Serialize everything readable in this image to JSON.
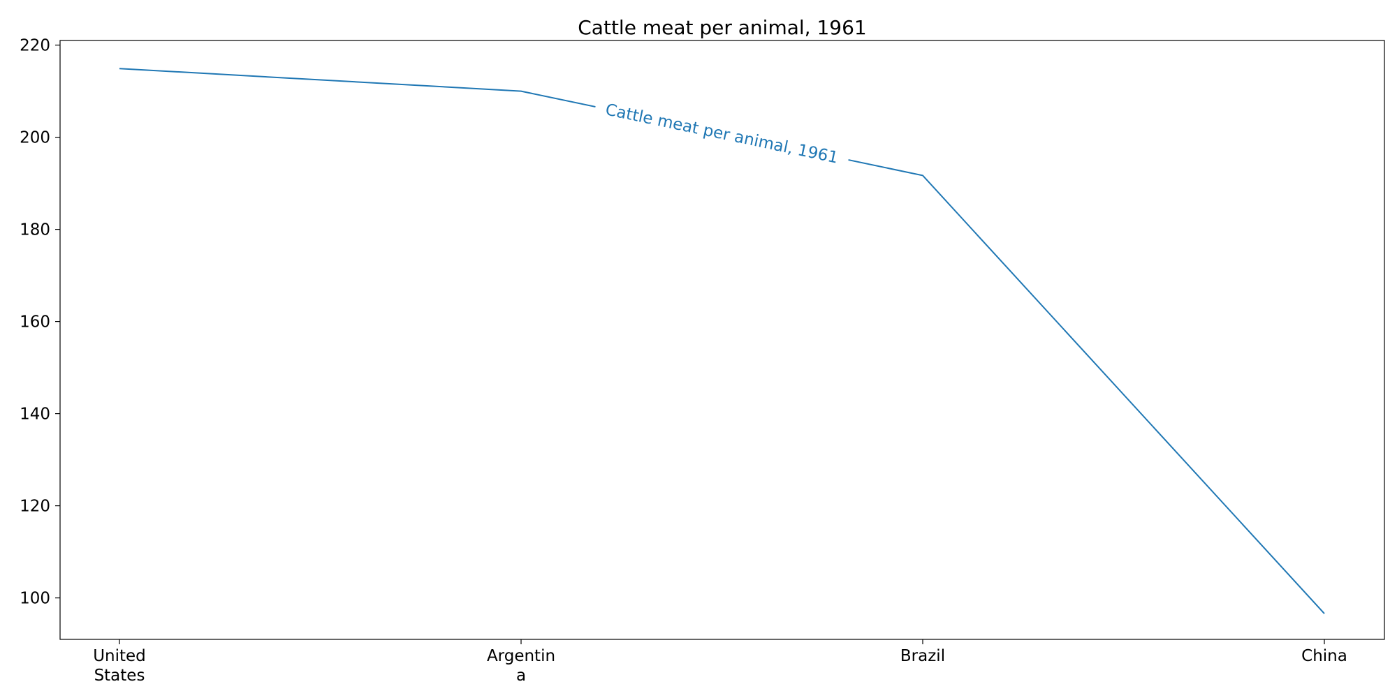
{
  "chart_data": {
    "type": "line",
    "title": "Cattle meat per animal, 1961",
    "xlabel": "",
    "ylabel": "",
    "categories": [
      "United States",
      "Argentina",
      "Brazil",
      "China"
    ],
    "category_tick_labels": [
      [
        "United",
        "States"
      ],
      [
        "Argentin",
        "a"
      ],
      [
        "Brazil"
      ],
      [
        "China"
      ]
    ],
    "series": [
      {
        "name": "Cattle meat per animal, 1961",
        "values": [
          214.9,
          210.0,
          191.7,
          96.6
        ],
        "color": "#1f77b4"
      }
    ],
    "ylim": [
      91,
      221
    ],
    "yticks": [
      100,
      120,
      140,
      160,
      180,
      200,
      220
    ],
    "inline_label": "Cattle meat per animal, 1961",
    "grid": false,
    "legend": "none"
  }
}
